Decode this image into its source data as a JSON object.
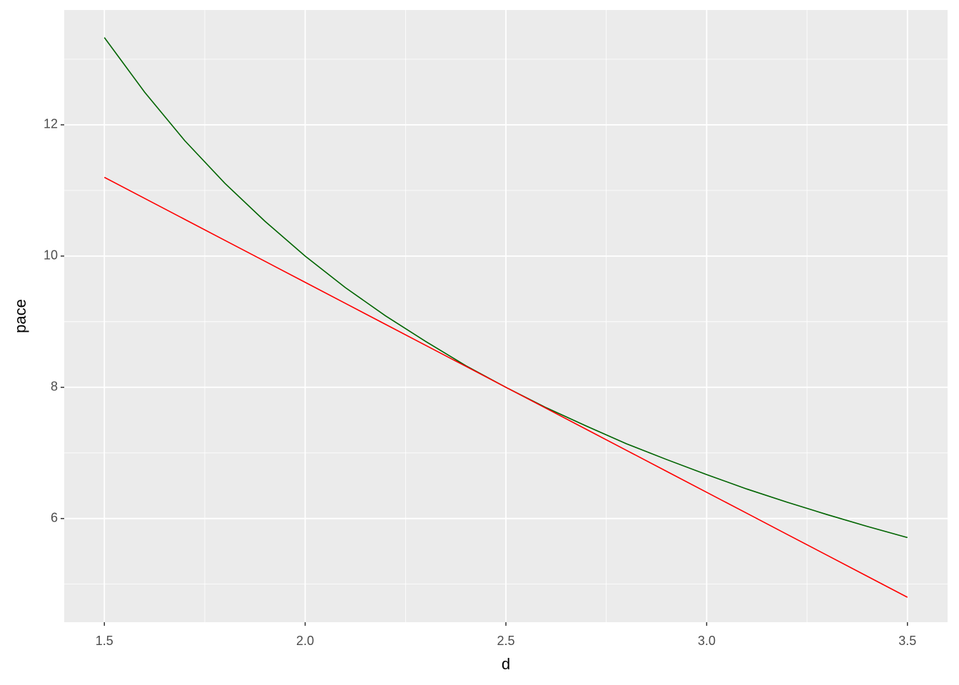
{
  "chart_data": {
    "type": "line",
    "x_label": "d",
    "y_label": "pace",
    "x": [
      1.5,
      1.6,
      1.7,
      1.8,
      1.9,
      2.0,
      2.1,
      2.2,
      2.3,
      2.4,
      2.5,
      2.6,
      2.7,
      2.8,
      2.9,
      3.0,
      3.1,
      3.2,
      3.3,
      3.4,
      3.5
    ],
    "series": [
      {
        "color": "#006400",
        "values": [
          13.33,
          12.5,
          11.76,
          11.11,
          10.53,
          10,
          9.52,
          9.09,
          8.7,
          8.33,
          8,
          7.69,
          7.41,
          7.14,
          6.9,
          6.67,
          6.45,
          6.25,
          6.06,
          5.88,
          5.71
        ]
      },
      {
        "color": "#ff0000",
        "values": [
          11.2,
          10.88,
          10.56,
          10.24,
          9.92,
          9.6,
          9.28,
          8.96,
          8.64,
          8.32,
          8,
          7.68,
          7.36,
          7.04,
          6.72,
          6.4,
          6.08,
          5.76,
          5.44,
          5.12,
          4.8
        ]
      }
    ],
    "xlim": [
      1.4,
      3.6
    ],
    "ylim": [
      4.42,
      13.75
    ],
    "xticks": [
      1.5,
      {
        "value": 2,
        "label": "2.0"
      },
      2.5,
      {
        "value": 3,
        "label": "3.0"
      },
      3.5
    ],
    "yticks": [
      6,
      8,
      10,
      12
    ],
    "grid": true,
    "minor_grid": true
  }
}
